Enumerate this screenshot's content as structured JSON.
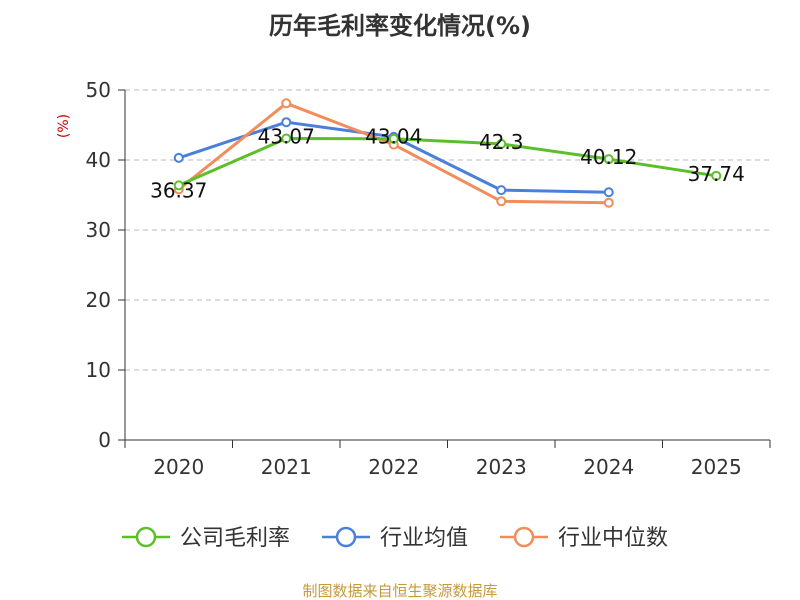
{
  "chart_data": {
    "type": "line",
    "title": "历年毛利率变化情况(%)",
    "ylabel": "(%)",
    "xlabel": "",
    "categories": [
      "2020",
      "2021",
      "2022",
      "2023",
      "2024",
      "2025"
    ],
    "ylim": [
      0,
      50
    ],
    "yticks": [
      0,
      10,
      20,
      30,
      40,
      50
    ],
    "grid": true,
    "legend_position": "bottom",
    "series": [
      {
        "name": "公司毛利率",
        "color": "#5cbf2a",
        "values": [
          36.37,
          43.07,
          43.04,
          42.3,
          40.12,
          37.74
        ],
        "labels": [
          "36.37",
          "43.07",
          "43.04",
          "42.3",
          "40.12",
          "37.74"
        ]
      },
      {
        "name": "行业均值",
        "color": "#4a7fdc",
        "values": [
          40.3,
          45.4,
          43.3,
          35.7,
          35.4,
          null
        ]
      },
      {
        "name": "行业中位数",
        "color": "#f28c5a",
        "values": [
          35.8,
          48.1,
          42.2,
          34.1,
          33.9,
          null
        ]
      }
    ]
  },
  "source": "制图数据来自恒生聚源数据库"
}
